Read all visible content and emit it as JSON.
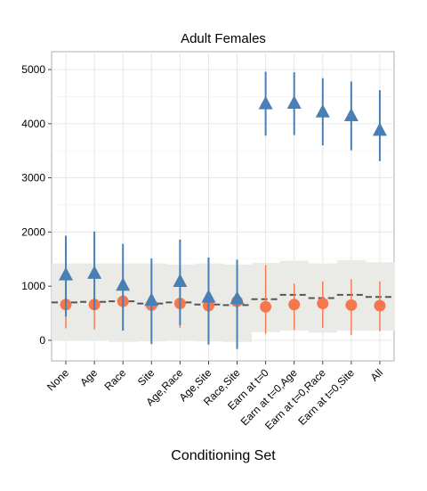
{
  "chart_data": {
    "type": "scatter",
    "title": "Adult Females",
    "xlabel": "Conditioning Set",
    "ylabel": "",
    "categories": [
      "None",
      "Age",
      "Race",
      "Site",
      "Age,Race",
      "Age,Site",
      "Race,Site",
      "Earn at t=0",
      "Earn at t=0,Age",
      "Earn at t=0,Race",
      "Earn at t=0,Site",
      "All"
    ],
    "ylim": [
      -380,
      5330
    ],
    "yticks": [
      0,
      1000,
      2000,
      3000,
      4000,
      5000
    ],
    "grid": true,
    "band": {
      "lower": [
        0,
        0,
        -30,
        -20,
        0,
        -20,
        -30,
        150,
        180,
        140,
        180,
        180
      ],
      "upper": [
        1420,
        1420,
        1420,
        1420,
        1400,
        1420,
        1400,
        1430,
        1470,
        1420,
        1480,
        1440
      ],
      "color": "#e9eae6"
    },
    "dashed_line": {
      "values": [
        700,
        710,
        720,
        680,
        700,
        660,
        650,
        760,
        840,
        780,
        840,
        800
      ],
      "color": "#555555"
    },
    "series": [
      {
        "marker": "triangle",
        "color": "#4a7fb5",
        "values": [
          1200,
          1230,
          1010,
          730,
          1080,
          790,
          760,
          4360,
          4370,
          4210,
          4140,
          3870
        ],
        "lower": [
          440,
          560,
          180,
          -70,
          280,
          -80,
          -160,
          3780,
          3790,
          3600,
          3510,
          3310
        ],
        "upper": [
          1930,
          2010,
          1780,
          1510,
          1860,
          1530,
          1490,
          4960,
          4950,
          4840,
          4780,
          4620
        ]
      },
      {
        "marker": "circle",
        "color": "#f4774e",
        "values": [
          660,
          660,
          720,
          650,
          680,
          640,
          720,
          620,
          660,
          680,
          650,
          640
        ],
        "lower": [
          220,
          200,
          250,
          170,
          230,
          200,
          290,
          120,
          190,
          230,
          100,
          170
        ],
        "upper": [
          1120,
          1120,
          1150,
          1170,
          1170,
          1190,
          1290,
          1390,
          1050,
          1090,
          1130,
          1090
        ]
      }
    ]
  }
}
